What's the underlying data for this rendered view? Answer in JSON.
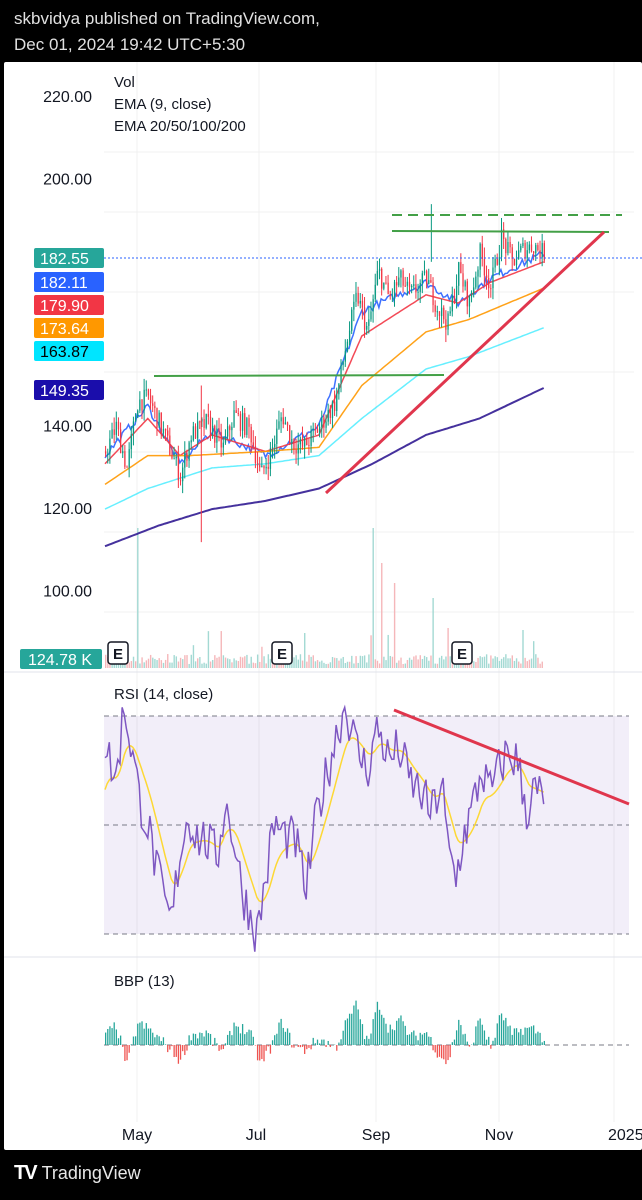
{
  "header": {
    "line1": "skbvidya published on TradingView.com,",
    "line2": "Dec 01, 2024 19:42 UTC+5:30"
  },
  "footer": {
    "brand": "TradingView",
    "logo_icon": "tradingview-logo-icon"
  },
  "chart_data": {
    "type": "candlestick",
    "legend": [
      "Vol",
      "EMA (9, close)",
      "EMA 20/50/100/200"
    ],
    "x_ticks": [
      "May",
      "Jul",
      "Sep",
      "Nov",
      "2025"
    ],
    "price_axis": {
      "range": [
        80,
        228
      ],
      "ticks": [
        "220.00",
        "200.00",
        "140.00",
        "120.00",
        "100.00"
      ],
      "tick_values": [
        220,
        200,
        140,
        120,
        100
      ]
    },
    "price_badges": [
      {
        "value": "182.55",
        "color": "#26a69a"
      },
      {
        "value": "182.11",
        "color": "#2962ff"
      },
      {
        "value": "179.90",
        "color": "#f23645"
      },
      {
        "value": "173.64",
        "color": "#ff9800"
      },
      {
        "value": "163.87",
        "color": "#00e5ff"
      },
      {
        "value": "149.35",
        "color": "#1a0dab"
      }
    ],
    "volume_badge": {
      "value": "124.78 K",
      "color": "#26a69a"
    },
    "earnings_markers": [
      "E",
      "E",
      "E"
    ],
    "rsi": {
      "title": "RSI (14, close)",
      "upper": 70,
      "mid": 50,
      "lower": 30
    },
    "bbp": {
      "title": "BBP (13)"
    },
    "close_anchors": [
      [
        0,
        134
      ],
      [
        10,
        140
      ],
      [
        20,
        130
      ],
      [
        30,
        146
      ],
      [
        40,
        147
      ],
      [
        55,
        138
      ],
      [
        70,
        128
      ],
      [
        80,
        138
      ],
      [
        95,
        141
      ],
      [
        110,
        135
      ],
      [
        120,
        143
      ],
      [
        135,
        139
      ],
      [
        145,
        128
      ],
      [
        155,
        134
      ],
      [
        165,
        143
      ],
      [
        175,
        136
      ],
      [
        185,
        135
      ],
      [
        200,
        140
      ],
      [
        215,
        146
      ],
      [
        225,
        160
      ],
      [
        235,
        172
      ],
      [
        245,
        163
      ],
      [
        255,
        178
      ],
      [
        265,
        171
      ],
      [
        275,
        176
      ],
      [
        285,
        172
      ],
      [
        300,
        176
      ],
      [
        310,
        169
      ],
      [
        320,
        165
      ],
      [
        330,
        178
      ],
      [
        340,
        170
      ],
      [
        350,
        182
      ],
      [
        360,
        174
      ],
      [
        370,
        186
      ],
      [
        380,
        180
      ],
      [
        390,
        183
      ],
      [
        400,
        184
      ],
      [
        410,
        182
      ]
    ],
    "ema_anchors": {
      "ema9": [
        [
          0,
          133
        ],
        [
          40,
          145
        ],
        [
          70,
          131
        ],
        [
          100,
          139
        ],
        [
          150,
          133
        ],
        [
          200,
          140
        ],
        [
          240,
          168
        ],
        [
          300,
          175
        ],
        [
          330,
          170
        ],
        [
          360,
          176
        ],
        [
          410,
          182
        ]
      ],
      "ema20": [
        [
          0,
          131
        ],
        [
          40,
          142
        ],
        [
          70,
          133
        ],
        [
          100,
          138
        ],
        [
          150,
          134
        ],
        [
          200,
          138
        ],
        [
          240,
          162
        ],
        [
          300,
          172
        ],
        [
          330,
          170
        ],
        [
          360,
          175
        ],
        [
          410,
          180
        ]
      ],
      "ema50": [
        [
          0,
          126
        ],
        [
          40,
          133
        ],
        [
          80,
          133
        ],
        [
          150,
          134
        ],
        [
          200,
          135
        ],
        [
          240,
          150
        ],
        [
          300,
          163
        ],
        [
          340,
          166
        ],
        [
          410,
          173.6
        ]
      ],
      "ema100": [
        [
          0,
          120
        ],
        [
          40,
          125
        ],
        [
          100,
          130
        ],
        [
          150,
          131
        ],
        [
          200,
          133
        ],
        [
          240,
          142
        ],
        [
          300,
          154
        ],
        [
          340,
          157
        ],
        [
          410,
          164
        ]
      ],
      "ema200": [
        [
          0,
          111
        ],
        [
          50,
          116
        ],
        [
          100,
          120
        ],
        [
          150,
          122
        ],
        [
          200,
          125
        ],
        [
          250,
          131
        ],
        [
          300,
          138
        ],
        [
          350,
          142
        ],
        [
          410,
          149.4
        ]
      ]
    },
    "rsi_anchors": [
      [
        0,
        65
      ],
      [
        10,
        58
      ],
      [
        18,
        72
      ],
      [
        25,
        64
      ],
      [
        32,
        55
      ],
      [
        40,
        50
      ],
      [
        48,
        42
      ],
      [
        55,
        36
      ],
      [
        62,
        32
      ],
      [
        70,
        45
      ],
      [
        78,
        52
      ],
      [
        85,
        48
      ],
      [
        95,
        47
      ],
      [
        105,
        44
      ],
      [
        112,
        54
      ],
      [
        120,
        48
      ],
      [
        128,
        38
      ],
      [
        135,
        34
      ],
      [
        142,
        30
      ],
      [
        150,
        40
      ],
      [
        158,
        50
      ],
      [
        168,
        48
      ],
      [
        178,
        47
      ],
      [
        188,
        38
      ],
      [
        198,
        52
      ],
      [
        208,
        60
      ],
      [
        218,
        68
      ],
      [
        225,
        72
      ],
      [
        235,
        64
      ],
      [
        245,
        60
      ],
      [
        255,
        68
      ],
      [
        265,
        62
      ],
      [
        275,
        64
      ],
      [
        285,
        58
      ],
      [
        295,
        56
      ],
      [
        305,
        52
      ],
      [
        315,
        58
      ],
      [
        320,
        46
      ],
      [
        328,
        40
      ],
      [
        335,
        48
      ],
      [
        342,
        52
      ],
      [
        352,
        60
      ],
      [
        360,
        56
      ],
      [
        368,
        60
      ],
      [
        375,
        63
      ],
      [
        385,
        62
      ],
      [
        395,
        52
      ],
      [
        400,
        56
      ],
      [
        410,
        55
      ]
    ]
  }
}
